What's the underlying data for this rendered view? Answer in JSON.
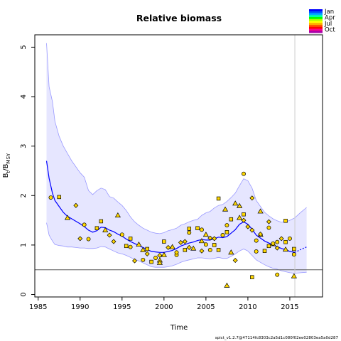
{
  "chart_data": {
    "type": "line",
    "title": "Relative biomass",
    "xlabel": "Time",
    "ylabel_main": "B",
    "ylabel_sub1": "t",
    "ylabel_mid": "/B",
    "ylabel_sub2": "MSY",
    "xlim": [
      1984.6,
      2018.9
    ],
    "ylim": [
      -0.05,
      5.25
    ],
    "x_ticks": [
      1985,
      1990,
      1995,
      2000,
      2005,
      2010,
      2015
    ],
    "y_ticks": [
      0,
      1,
      2,
      3,
      4,
      5
    ],
    "reference_hline": 0.5,
    "reference_vline": 2015.6,
    "grid": false,
    "legend_position": "top-right",
    "legend": [
      {
        "label": "Jan",
        "color": "#0000ff"
      },
      {
        "label": "Apr",
        "color": "#00ff00"
      },
      {
        "label": "Jul",
        "color": "#ffaa00"
      },
      {
        "label": "Oct",
        "color": "#aa00aa"
      }
    ],
    "legend_colors": [
      "#0000ff",
      "#0055ff",
      "#00aaff",
      "#00ffaa",
      "#00ff00",
      "#aaff00",
      "#ffff00",
      "#ffaa00",
      "#ff5500",
      "#ff0000",
      "#ff0088",
      "#aa00aa"
    ],
    "colors": {
      "line": "#0000ff",
      "band_fill": "#e6e6ff",
      "band_edge": "#9999ff",
      "points": "#ffd700",
      "ref_line": "#555555",
      "vline": "#cccccc"
    },
    "series": [
      {
        "name": "",
        "kind": "line",
        "x": [
          1986.0,
          1986.3,
          1986.7,
          1987.0,
          1987.5,
          1988.0,
          1988.5,
          1989.0,
          1989.5,
          1990.0,
          1990.5,
          1991.0,
          1991.5,
          1992.0,
          1992.5,
          1993.0,
          1993.5,
          1994.0,
          1994.5,
          1995.0,
          1995.5,
          1996.0,
          1996.5,
          1997.0,
          1997.5,
          1998.0,
          1998.5,
          1999.0,
          1999.5,
          2000.0,
          2000.5,
          2001.0,
          2001.5,
          2002.0,
          2002.5,
          2003.0,
          2003.5,
          2004.0,
          2004.5,
          2005.0,
          2005.5,
          2006.0,
          2006.5,
          2007.0,
          2007.5,
          2008.0,
          2008.5,
          2009.0,
          2009.5,
          2010.0,
          2010.5,
          2011.0,
          2011.5,
          2012.0,
          2012.5,
          2013.0,
          2013.5,
          2014.0,
          2014.5,
          2015.0,
          2015.6
        ],
        "y": [
          2.7,
          2.35,
          2.05,
          1.9,
          1.78,
          1.66,
          1.58,
          1.53,
          1.48,
          1.43,
          1.37,
          1.3,
          1.26,
          1.29,
          1.36,
          1.35,
          1.3,
          1.27,
          1.22,
          1.18,
          1.12,
          1.07,
          1.03,
          0.99,
          0.95,
          0.91,
          0.87,
          0.86,
          0.85,
          0.85,
          0.87,
          0.89,
          0.93,
          0.98,
          1.01,
          1.04,
          1.06,
          1.09,
          1.11,
          1.1,
          1.1,
          1.13,
          1.16,
          1.15,
          1.17,
          1.24,
          1.31,
          1.42,
          1.47,
          1.42,
          1.32,
          1.2,
          1.14,
          1.08,
          1.04,
          1.0,
          0.97,
          0.93,
          0.91,
          0.87,
          0.85
        ]
      },
      {
        "name": "",
        "kind": "projection",
        "x": [
          2015.6,
          2016.3,
          2017.0
        ],
        "y": [
          0.85,
          0.91,
          0.96
        ]
      },
      {
        "name": "",
        "kind": "band_upper",
        "x": [
          1986.0,
          1986.3,
          1986.7,
          1987.0,
          1987.5,
          1988.0,
          1988.5,
          1989.0,
          1989.5,
          1990.0,
          1990.5,
          1991.0,
          1991.5,
          1992.0,
          1992.5,
          1993.0,
          1993.5,
          1994.0,
          1994.5,
          1995.0,
          1995.5,
          1996.0,
          1996.5,
          1997.0,
          1997.5,
          1998.0,
          1998.5,
          1999.0,
          1999.5,
          2000.0,
          2000.5,
          2001.0,
          2001.5,
          2002.0,
          2002.5,
          2003.0,
          2003.5,
          2004.0,
          2004.5,
          2005.0,
          2005.5,
          2006.0,
          2006.5,
          2007.0,
          2007.5,
          2008.0,
          2008.5,
          2009.0,
          2009.5,
          2010.0,
          2010.5,
          2011.0,
          2011.5,
          2012.0,
          2012.5,
          2013.0,
          2013.5,
          2014.0,
          2014.5,
          2015.0,
          2015.6,
          2016.3,
          2017.0
        ],
        "y": [
          5.08,
          4.2,
          3.9,
          3.5,
          3.2,
          3.0,
          2.85,
          2.7,
          2.58,
          2.46,
          2.37,
          2.1,
          2.02,
          2.1,
          2.15,
          2.12,
          1.98,
          1.95,
          1.87,
          1.8,
          1.7,
          1.57,
          1.47,
          1.4,
          1.34,
          1.3,
          1.26,
          1.24,
          1.23,
          1.25,
          1.29,
          1.31,
          1.34,
          1.4,
          1.43,
          1.47,
          1.5,
          1.52,
          1.6,
          1.65,
          1.68,
          1.75,
          1.8,
          1.82,
          1.88,
          1.96,
          2.05,
          2.2,
          2.34,
          2.3,
          2.15,
          1.9,
          1.78,
          1.66,
          1.59,
          1.53,
          1.49,
          1.46,
          1.47,
          1.5,
          1.55,
          1.66,
          1.76
        ]
      },
      {
        "name": "",
        "kind": "band_lower",
        "x": [
          1986.0,
          1986.3,
          1986.7,
          1987.0,
          1987.5,
          1988.0,
          1988.5,
          1989.0,
          1989.5,
          1990.0,
          1990.5,
          1991.0,
          1991.5,
          1992.0,
          1992.5,
          1993.0,
          1993.5,
          1994.0,
          1994.5,
          1995.0,
          1995.5,
          1996.0,
          1996.5,
          1997.0,
          1997.5,
          1998.0,
          1998.5,
          1999.0,
          1999.5,
          2000.0,
          2000.5,
          2001.0,
          2001.5,
          2002.0,
          2002.5,
          2003.0,
          2003.5,
          2004.0,
          2004.5,
          2005.0,
          2005.5,
          2006.0,
          2006.5,
          2007.0,
          2007.5,
          2008.0,
          2008.5,
          2009.0,
          2009.5,
          2010.0,
          2010.5,
          2011.0,
          2011.5,
          2012.0,
          2012.5,
          2013.0,
          2013.5,
          2014.0,
          2014.5,
          2015.0,
          2015.6,
          2016.3,
          2017.0
        ],
        "y": [
          1.45,
          1.2,
          1.08,
          1.01,
          0.99,
          0.98,
          0.96,
          0.96,
          0.95,
          0.94,
          0.94,
          0.93,
          0.93,
          0.94,
          0.97,
          0.96,
          0.92,
          0.88,
          0.84,
          0.82,
          0.79,
          0.75,
          0.71,
          0.68,
          0.64,
          0.6,
          0.56,
          0.55,
          0.55,
          0.55,
          0.56,
          0.58,
          0.61,
          0.65,
          0.68,
          0.7,
          0.72,
          0.74,
          0.74,
          0.73,
          0.72,
          0.73,
          0.75,
          0.73,
          0.73,
          0.77,
          0.82,
          0.88,
          0.92,
          0.88,
          0.79,
          0.7,
          0.65,
          0.6,
          0.56,
          0.53,
          0.51,
          0.48,
          0.46,
          0.44,
          0.43,
          0.44,
          0.45
        ]
      },
      {
        "name": "",
        "kind": "points",
        "x": [
          1986.5,
          1987.5,
          1988.5,
          1989.5,
          1990.5,
          1992.5,
          1994.5,
          1996.5,
          1997.5,
          1998.5,
          1999.5,
          2000.5,
          2001.5,
          2002.5,
          2003.5,
          2004.5,
          2005.5,
          2006.5,
          2007.5,
          2008.5,
          2009.5,
          2010.5,
          2011.5,
          2012.5,
          2013.5,
          2014.5,
          2015.5,
          1990.0,
          1991.0,
          1992.0,
          1993.0,
          1994.0,
          1995.0,
          1996.0,
          1997.0,
          1998.0,
          1999.0,
          2000.0,
          2001.0,
          2002.0,
          2003.0,
          2004.0,
          2005.0,
          2006.0,
          2007.0,
          2008.0,
          2009.0,
          2010.0,
          2011.0,
          2012.0,
          2013.0,
          2014.0,
          2015.0,
          1995.5,
          1997.5,
          1999.5,
          2001.5,
          2003.0,
          2004.5,
          2005.5,
          2007.5,
          2009.5,
          2011.5,
          2013.5,
          2015.5,
          2006.5,
          2008.5,
          2010.5,
          2012.5,
          2014.5,
          2007.3,
          2010.5,
          2013.5,
          2015.5,
          1999.5,
          2002.5,
          2004.5,
          2006.0,
          2008.0,
          2009.5,
          2011.0,
          2012.5,
          2014.5,
          1993.5,
          1996.0,
          1998.0,
          2000.0,
          2003.0,
          2005.0,
          2007.5,
          2009.0,
          2011.5,
          2013.0
        ],
        "y": [
          1.96,
          1.97,
          1.55,
          1.8,
          1.41,
          1.48,
          1.6,
          0.68,
          0.7,
          0.66,
          0.69,
          0.95,
          0.8,
          0.9,
          0.93,
          0.88,
          0.9,
          0.9,
          0.18,
          0.69,
          2.44,
          0.35,
          1.68,
          1.47,
          0.4,
          1.49,
          0.37,
          1.13,
          1.12,
          1.34,
          1.3,
          1.07,
          1.21,
          1.13,
          1.01,
          0.82,
          0.74,
          1.07,
          0.96,
          1.05,
          1.25,
          1.34,
          1.21,
          1.13,
          1.2,
          1.52,
          1.79,
          1.37,
          0.87,
          0.88,
          1.02,
          1.13,
          1.13,
          0.98,
          0.9,
          0.79,
          0.85,
          1.33,
          1.08,
          1.14,
          1.4,
          1.62,
          1.21,
          0.94,
          0.81,
          1.94,
          1.84,
          1.95,
          1.35,
          1.06,
          1.72,
          1.3,
          1.06,
          0.92,
          0.64,
          1.07,
          1.31,
          1.0,
          0.85,
          1.5,
          1.09,
          0.98,
          0.91,
          1.2,
          0.96,
          0.92,
          0.8,
          0.95,
          1.01,
          1.26,
          1.55,
          1.22,
          1.03
        ]
      }
    ],
    "footnote": "spict_v1.2.7@47114fc8303c2a5d1c080f02ee02803ea5a0d287"
  }
}
